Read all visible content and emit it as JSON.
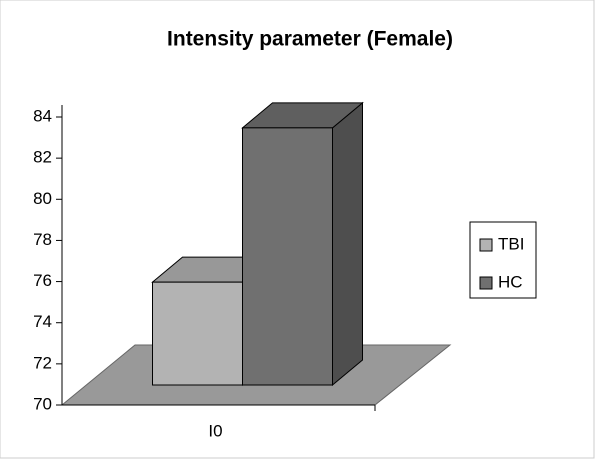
{
  "chart_data": {
    "type": "bar3d",
    "title": "Intensity parameter (Female)",
    "categories": [
      "I0"
    ],
    "series": [
      {
        "name": "TBI",
        "color": "#b3b3b3",
        "values": [
          75
        ]
      },
      {
        "name": "HC",
        "color": "#707070",
        "values": [
          82.5
        ]
      }
    ],
    "ylim": [
      70,
      84
    ],
    "yticks": [
      70,
      72,
      74,
      76,
      78,
      80,
      82,
      84
    ],
    "legend": "right"
  }
}
